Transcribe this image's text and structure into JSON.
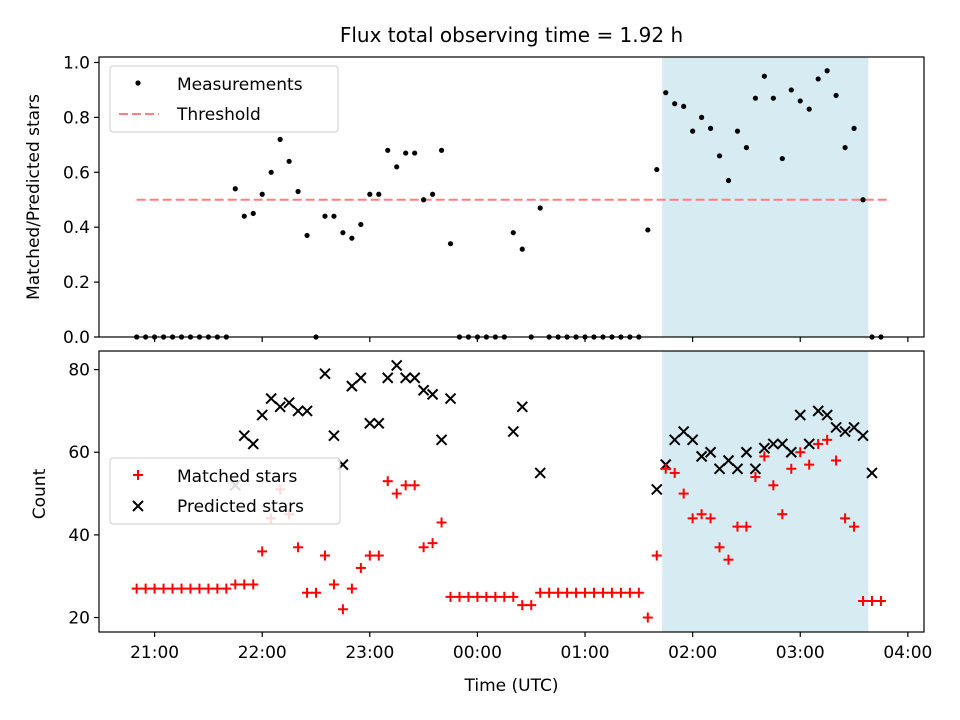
{
  "figure": {
    "title": "Flux total observing time = 1.92 h",
    "xlabel": "Time (UTC)"
  },
  "chart_data": [
    {
      "type": "scatter",
      "title": "Flux total observing time = 1.92 h",
      "xlabel": "",
      "ylabel": "Matched/Predicted stars",
      "xlim": [
        "2023-01-01T20:29",
        "2023-01-02T04:09"
      ],
      "ylim": [
        0,
        1.02
      ],
      "yticks": [
        0,
        0.2,
        0.4,
        0.6,
        0.8,
        1.0
      ],
      "ytick_labels": [
        "0.0",
        "0.2",
        "0.4",
        "0.6",
        "0.8",
        "1.0"
      ],
      "grid": false,
      "legend": "upper-left",
      "shaded_region": {
        "x": [
          "2023-01-02T01:43",
          "2023-01-02T03:38"
        ],
        "color": "#add8e6"
      },
      "threshold": {
        "name": "Threshold",
        "y": 0.5,
        "x": [
          "2023-01-01T20:50",
          "2023-01-02T03:50"
        ],
        "color": "#ff7f7f",
        "style": "dashed"
      },
      "series": [
        {
          "name": "Measurements",
          "marker": "dot",
          "color": "#000000",
          "x": [
            "2023-01-01T20:50",
            "2023-01-01T20:55",
            "2023-01-01T21:00",
            "2023-01-01T21:05",
            "2023-01-01T21:10",
            "2023-01-01T21:15",
            "2023-01-01T21:20",
            "2023-01-01T21:25",
            "2023-01-01T21:30",
            "2023-01-01T21:35",
            "2023-01-01T21:40",
            "2023-01-01T21:45",
            "2023-01-01T21:50",
            "2023-01-01T21:55",
            "2023-01-01T22:00",
            "2023-01-01T22:05",
            "2023-01-01T22:10",
            "2023-01-01T22:15",
            "2023-01-01T22:20",
            "2023-01-01T22:25",
            "2023-01-01T22:30",
            "2023-01-01T22:35",
            "2023-01-01T22:40",
            "2023-01-01T22:45",
            "2023-01-01T22:50",
            "2023-01-01T22:55",
            "2023-01-01T23:00",
            "2023-01-01T23:05",
            "2023-01-01T23:10",
            "2023-01-01T23:15",
            "2023-01-01T23:20",
            "2023-01-01T23:25",
            "2023-01-01T23:30",
            "2023-01-01T23:35",
            "2023-01-01T23:40",
            "2023-01-01T23:45",
            "2023-01-01T23:50",
            "2023-01-01T23:55",
            "2023-01-02T00:00",
            "2023-01-02T00:05",
            "2023-01-02T00:10",
            "2023-01-02T00:15",
            "2023-01-02T00:20",
            "2023-01-02T00:25",
            "2023-01-02T00:30",
            "2023-01-02T00:35",
            "2023-01-02T00:40",
            "2023-01-02T00:45",
            "2023-01-02T00:50",
            "2023-01-02T00:55",
            "2023-01-02T01:00",
            "2023-01-02T01:05",
            "2023-01-02T01:10",
            "2023-01-02T01:15",
            "2023-01-02T01:20",
            "2023-01-02T01:25",
            "2023-01-02T01:30",
            "2023-01-02T01:35",
            "2023-01-02T01:40",
            "2023-01-02T01:45",
            "2023-01-02T01:50",
            "2023-01-02T01:55",
            "2023-01-02T02:00",
            "2023-01-02T02:05",
            "2023-01-02T02:10",
            "2023-01-02T02:15",
            "2023-01-02T02:20",
            "2023-01-02T02:25",
            "2023-01-02T02:30",
            "2023-01-02T02:35",
            "2023-01-02T02:40",
            "2023-01-02T02:45",
            "2023-01-02T02:50",
            "2023-01-02T02:55",
            "2023-01-02T03:00",
            "2023-01-02T03:05",
            "2023-01-02T03:10",
            "2023-01-02T03:15",
            "2023-01-02T03:20",
            "2023-01-02T03:25",
            "2023-01-02T03:30",
            "2023-01-02T03:35",
            "2023-01-02T03:40",
            "2023-01-02T03:45"
          ],
          "y": [
            0,
            0,
            0,
            0,
            0,
            0,
            0,
            0,
            0,
            0,
            0,
            0.54,
            0.44,
            0.45,
            0.52,
            0.6,
            0.72,
            0.64,
            0.53,
            0.37,
            0,
            0.44,
            0.44,
            0.38,
            0.36,
            0.41,
            0.52,
            0.52,
            0.68,
            0.62,
            0.67,
            0.67,
            0.5,
            0.52,
            0.68,
            0.34,
            0,
            0,
            0,
            0,
            0,
            0,
            0.38,
            0.32,
            0,
            0.47,
            0,
            0,
            0,
            0,
            0,
            0,
            0,
            0,
            0,
            0,
            0,
            0.39,
            0.61,
            0.89,
            0.85,
            0.84,
            0.75,
            0.8,
            0.76,
            0.66,
            0.57,
            0.75,
            0.69,
            0.87,
            0.95,
            0.87,
            0.65,
            0.9,
            0.86,
            0.83,
            0.94,
            0.97,
            0.88,
            0.69,
            0.76,
            0.5,
            0,
            0
          ]
        }
      ]
    },
    {
      "type": "scatter",
      "title": "",
      "xlabel": "Time (UTC)",
      "ylabel": "Count",
      "xlim": [
        "2023-01-01T20:29",
        "2023-01-02T04:09"
      ],
      "xticks": [
        "2023-01-01T21:00",
        "2023-01-01T22:00",
        "2023-01-01T23:00",
        "2023-01-02T00:00",
        "2023-01-02T01:00",
        "2023-01-02T02:00",
        "2023-01-02T03:00",
        "2023-01-02T04:00"
      ],
      "xtick_labels": [
        "21:00",
        "22:00",
        "23:00",
        "00:00",
        "01:00",
        "02:00",
        "03:00",
        "04:00"
      ],
      "ylim": [
        16.5,
        84.5
      ],
      "yticks": [
        20,
        40,
        60,
        80
      ],
      "ytick_labels": [
        "20",
        "40",
        "60",
        "80"
      ],
      "grid": false,
      "legend": "center-left",
      "shaded_region": {
        "x": [
          "2023-01-02T01:43",
          "2023-01-02T03:38"
        ],
        "color": "#add8e6"
      },
      "series": [
        {
          "name": "Matched stars",
          "marker": "plus",
          "color": "#ff0000",
          "x": [
            "2023-01-01T20:50",
            "2023-01-01T20:55",
            "2023-01-01T21:00",
            "2023-01-01T21:05",
            "2023-01-01T21:10",
            "2023-01-01T21:15",
            "2023-01-01T21:20",
            "2023-01-01T21:25",
            "2023-01-01T21:30",
            "2023-01-01T21:35",
            "2023-01-01T21:40",
            "2023-01-01T21:45",
            "2023-01-01T21:50",
            "2023-01-01T21:55",
            "2023-01-01T22:00",
            "2023-01-01T22:05",
            "2023-01-01T22:10",
            "2023-01-01T22:15",
            "2023-01-01T22:20",
            "2023-01-01T22:25",
            "2023-01-01T22:30",
            "2023-01-01T22:35",
            "2023-01-01T22:40",
            "2023-01-01T22:45",
            "2023-01-01T22:50",
            "2023-01-01T22:55",
            "2023-01-01T23:00",
            "2023-01-01T23:05",
            "2023-01-01T23:10",
            "2023-01-01T23:15",
            "2023-01-01T23:20",
            "2023-01-01T23:25",
            "2023-01-01T23:30",
            "2023-01-01T23:35",
            "2023-01-01T23:40",
            "2023-01-01T23:45",
            "2023-01-01T23:50",
            "2023-01-01T23:55",
            "2023-01-02T00:00",
            "2023-01-02T00:05",
            "2023-01-02T00:10",
            "2023-01-02T00:15",
            "2023-01-02T00:20",
            "2023-01-02T00:25",
            "2023-01-02T00:30",
            "2023-01-02T00:35",
            "2023-01-02T00:40",
            "2023-01-02T00:45",
            "2023-01-02T00:50",
            "2023-01-02T00:55",
            "2023-01-02T01:00",
            "2023-01-02T01:05",
            "2023-01-02T01:10",
            "2023-01-02T01:15",
            "2023-01-02T01:20",
            "2023-01-02T01:25",
            "2023-01-02T01:30",
            "2023-01-02T01:35",
            "2023-01-02T01:40",
            "2023-01-02T01:45",
            "2023-01-02T01:50",
            "2023-01-02T01:55",
            "2023-01-02T02:00",
            "2023-01-02T02:05",
            "2023-01-02T02:10",
            "2023-01-02T02:15",
            "2023-01-02T02:20",
            "2023-01-02T02:25",
            "2023-01-02T02:30",
            "2023-01-02T02:35",
            "2023-01-02T02:40",
            "2023-01-02T02:45",
            "2023-01-02T02:50",
            "2023-01-02T02:55",
            "2023-01-02T03:00",
            "2023-01-02T03:05",
            "2023-01-02T03:10",
            "2023-01-02T03:15",
            "2023-01-02T03:20",
            "2023-01-02T03:25",
            "2023-01-02T03:30",
            "2023-01-02T03:35",
            "2023-01-02T03:40",
            "2023-01-02T03:45"
          ],
          "y": [
            27,
            27,
            27,
            27,
            27,
            27,
            27,
            27,
            27,
            27,
            27,
            28,
            28,
            28,
            36,
            44,
            51,
            45,
            37,
            26,
            26,
            35,
            28,
            22,
            27,
            32,
            35,
            35,
            53,
            50,
            52,
            52,
            37,
            38,
            43,
            25,
            25,
            25,
            25,
            25,
            25,
            25,
            25,
            23,
            23,
            26,
            26,
            26,
            26,
            26,
            26,
            26,
            26,
            26,
            26,
            26,
            26,
            20,
            35,
            56,
            55,
            50,
            44,
            45,
            44,
            37,
            34,
            42,
            42,
            54,
            59,
            52,
            45,
            56,
            60,
            57,
            62,
            63,
            58,
            44,
            42,
            24,
            24,
            24
          ]
        },
        {
          "name": "Predicted stars",
          "marker": "x",
          "color": "#000000",
          "x": [
            "2023-01-01T21:45",
            "2023-01-01T21:50",
            "2023-01-01T21:55",
            "2023-01-01T22:00",
            "2023-01-01T22:05",
            "2023-01-01T22:10",
            "2023-01-01T22:15",
            "2023-01-01T22:20",
            "2023-01-01T22:25",
            "2023-01-01T22:35",
            "2023-01-01T22:40",
            "2023-01-01T22:45",
            "2023-01-01T22:50",
            "2023-01-01T22:55",
            "2023-01-01T23:00",
            "2023-01-01T23:05",
            "2023-01-01T23:10",
            "2023-01-01T23:15",
            "2023-01-01T23:20",
            "2023-01-01T23:25",
            "2023-01-01T23:30",
            "2023-01-01T23:35",
            "2023-01-01T23:40",
            "2023-01-01T23:45",
            "2023-01-02T00:20",
            "2023-01-02T00:25",
            "2023-01-02T00:35",
            "2023-01-02T01:40",
            "2023-01-02T01:45",
            "2023-01-02T01:50",
            "2023-01-02T01:55",
            "2023-01-02T02:00",
            "2023-01-02T02:05",
            "2023-01-02T02:10",
            "2023-01-02T02:15",
            "2023-01-02T02:20",
            "2023-01-02T02:25",
            "2023-01-02T02:30",
            "2023-01-02T02:35",
            "2023-01-02T02:40",
            "2023-01-02T02:45",
            "2023-01-02T02:50",
            "2023-01-02T02:55",
            "2023-01-02T03:00",
            "2023-01-02T03:05",
            "2023-01-02T03:10",
            "2023-01-02T03:15",
            "2023-01-02T03:20",
            "2023-01-02T03:25",
            "2023-01-02T03:30",
            "2023-01-02T03:35",
            "2023-01-02T03:40"
          ],
          "y": [
            52,
            64,
            62,
            69,
            73,
            71,
            72,
            70,
            70,
            79,
            64,
            57,
            76,
            78,
            67,
            67,
            78,
            81,
            78,
            78,
            75,
            74,
            63,
            73,
            65,
            71,
            55,
            51,
            57,
            63,
            65,
            63,
            59,
            60,
            56,
            58,
            56,
            60,
            56,
            61,
            62,
            62,
            60,
            69,
            62,
            70,
            69,
            66,
            65,
            66,
            64,
            55
          ]
        }
      ]
    }
  ]
}
